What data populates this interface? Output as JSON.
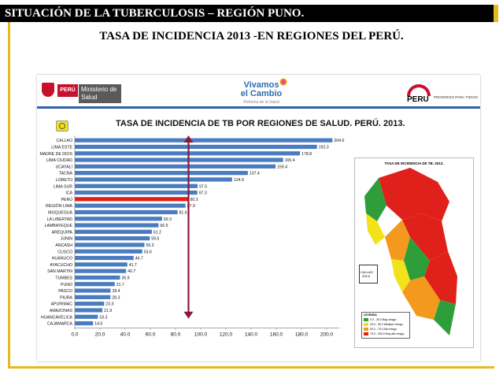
{
  "slide_title": "SITUACIÓN DE LA TUBERCULOSIS – REGIÓN  PUNO.",
  "slide_subtitle": "TASA DE  INCIDENCIA  2013  -EN REGIONES DEL PERÚ.",
  "header": {
    "minsa_peru": "PERÚ",
    "minsa_name": "Ministerio de Salud",
    "vivamos_line1": "Vivamos",
    "vivamos_line2": "el Cambio",
    "vivamos_tag": "Reforma de la Salud",
    "peru_brand": "PERU",
    "peru_brand_tag": "PROGRESO PARA TODOS"
  },
  "chart_data": {
    "type": "bar",
    "orientation": "horizontal",
    "title": "TASA DE INCIDENCIA DE TB POR REGIONES DE SALUD. PERÚ. 2013.",
    "categories": [
      "CALLAO",
      "LIMA ESTE",
      "MADRE DE DIOS",
      "LIMA CIUDAD",
      "UCAYALI",
      "TACNA",
      "LORETO",
      "LIMA SUR",
      "ICA",
      "PERÚ",
      "REGIÓN LIMA",
      "MOQUEGUA",
      "LA LIBERTAD",
      "LAMBAYEQUE",
      "AREQUIPA",
      "JUNIN",
      "ANCASH",
      "CUSCO",
      "HUANUCO",
      "AYACUCHO",
      "SAN MARTIN",
      "TUMBES",
      "PUNO",
      "PASCO",
      "PIURA",
      "APURIMAC",
      "AMAZONAS",
      "HUANCAVELICA",
      "CAJAMARCA"
    ],
    "values": [
      204.6,
      192.3,
      178.8,
      165.4,
      159.4,
      137.4,
      124.9,
      97.5,
      97.3,
      90.3,
      87.9,
      81.6,
      69.3,
      66.5,
      61.2,
      59.5,
      55.3,
      53.6,
      46.7,
      41.7,
      40.7,
      35.9,
      31.7,
      28.4,
      28.3,
      23.3,
      21.9,
      18.3,
      14.5
    ],
    "value_labels": [
      "204.6",
      "192.3",
      "178.8",
      "165.4",
      "159.4",
      "137.4",
      "124.9",
      "97.5",
      "97.3",
      "90.3",
      "87.9",
      "81.6",
      "69.3",
      "66.5",
      "61.2",
      "59.5",
      "55.3",
      "53.6",
      "46.7",
      "41.7",
      "40.7",
      "35.9",
      "31.7",
      "28.4",
      "28.3",
      "23.3",
      "21.9",
      "18.3",
      "14.5"
    ],
    "highlight_category": "PERÚ",
    "reference_line_x": 90.3,
    "xlim": [
      0,
      210
    ],
    "x_ticks": [
      "0.0",
      "20.0",
      "40.0",
      "60.0",
      "80.0",
      "100.0",
      "120.0",
      "140.0",
      "160.0",
      "180.0",
      "200.0"
    ],
    "grid": false,
    "colors": {
      "bar": "#4a7cc0",
      "highlight": "#e0201a",
      "reference_arrow": "#8b1a3a"
    }
  },
  "map": {
    "title": "TASA DE INCIDENCIA DE TB. 2013.",
    "inset_label": "CALLAO",
    "inset_value": "204.6",
    "legend_title": "LEYENDA",
    "legend": [
      {
        "label": "0.0 - 25.0  Bajo riesgo",
        "color": "#2e9e3a"
      },
      {
        "label": "25.0 - 50.0  Mediano riesgo",
        "color": "#f2e21a"
      },
      {
        "label": "50.0 - 75.0  Alto riesgo",
        "color": "#f39a1e"
      },
      {
        "label": "75.0 - 250.0  Muy alto riesgo",
        "color": "#e0201a"
      }
    ],
    "colors": {
      "green": "#2e9e3a",
      "yellow": "#f2e21a",
      "orange": "#f39a1e",
      "red": "#e0201a"
    }
  }
}
